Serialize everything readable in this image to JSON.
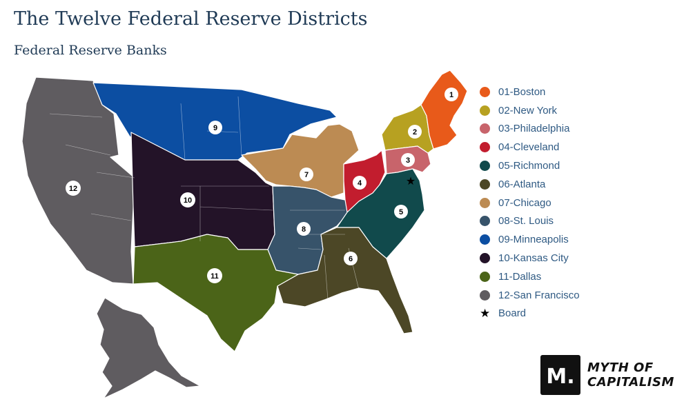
{
  "title": "The Twelve Federal Reserve Districts",
  "subtitle": "Federal Reserve Banks",
  "legend": [
    {
      "label": "01-Boston",
      "color": "#e85a1a"
    },
    {
      "label": "02-New York",
      "color": "#b7a121"
    },
    {
      "label": "03-Philadelphia",
      "color": "#c8646b"
    },
    {
      "label": "04-Cleveland",
      "color": "#c21d2e"
    },
    {
      "label": "05-Richmond",
      "color": "#114a4c"
    },
    {
      "label": "06-Atlanta",
      "color": "#4c4726"
    },
    {
      "label": "07-Chicago",
      "color": "#bc8b53"
    },
    {
      "label": "08-St. Louis",
      "color": "#37536a"
    },
    {
      "label": "09-Minneapolis",
      "color": "#0c4ea2"
    },
    {
      "label": "10-Kansas City",
      "color": "#231328"
    },
    {
      "label": "11-Dallas",
      "color": "#4b6418"
    },
    {
      "label": "12-San Francisco",
      "color": "#5f5c60"
    }
  ],
  "board_label": "Board",
  "districts": [
    {
      "number": "1",
      "name": "Boston"
    },
    {
      "number": "2",
      "name": "New York"
    },
    {
      "number": "3",
      "name": "Philadelphia"
    },
    {
      "number": "4",
      "name": "Cleveland"
    },
    {
      "number": "5",
      "name": "Richmond"
    },
    {
      "number": "6",
      "name": "Atlanta"
    },
    {
      "number": "7",
      "name": "Chicago"
    },
    {
      "number": "8",
      "name": "St. Louis"
    },
    {
      "number": "9",
      "name": "Minneapolis"
    },
    {
      "number": "10",
      "name": "Kansas City"
    },
    {
      "number": "11",
      "name": "Dallas"
    },
    {
      "number": "12",
      "name": "San Francisco"
    }
  ],
  "logo": {
    "mark": "M.",
    "line1": "MYTH OF",
    "line2": "CAPITALISM"
  }
}
